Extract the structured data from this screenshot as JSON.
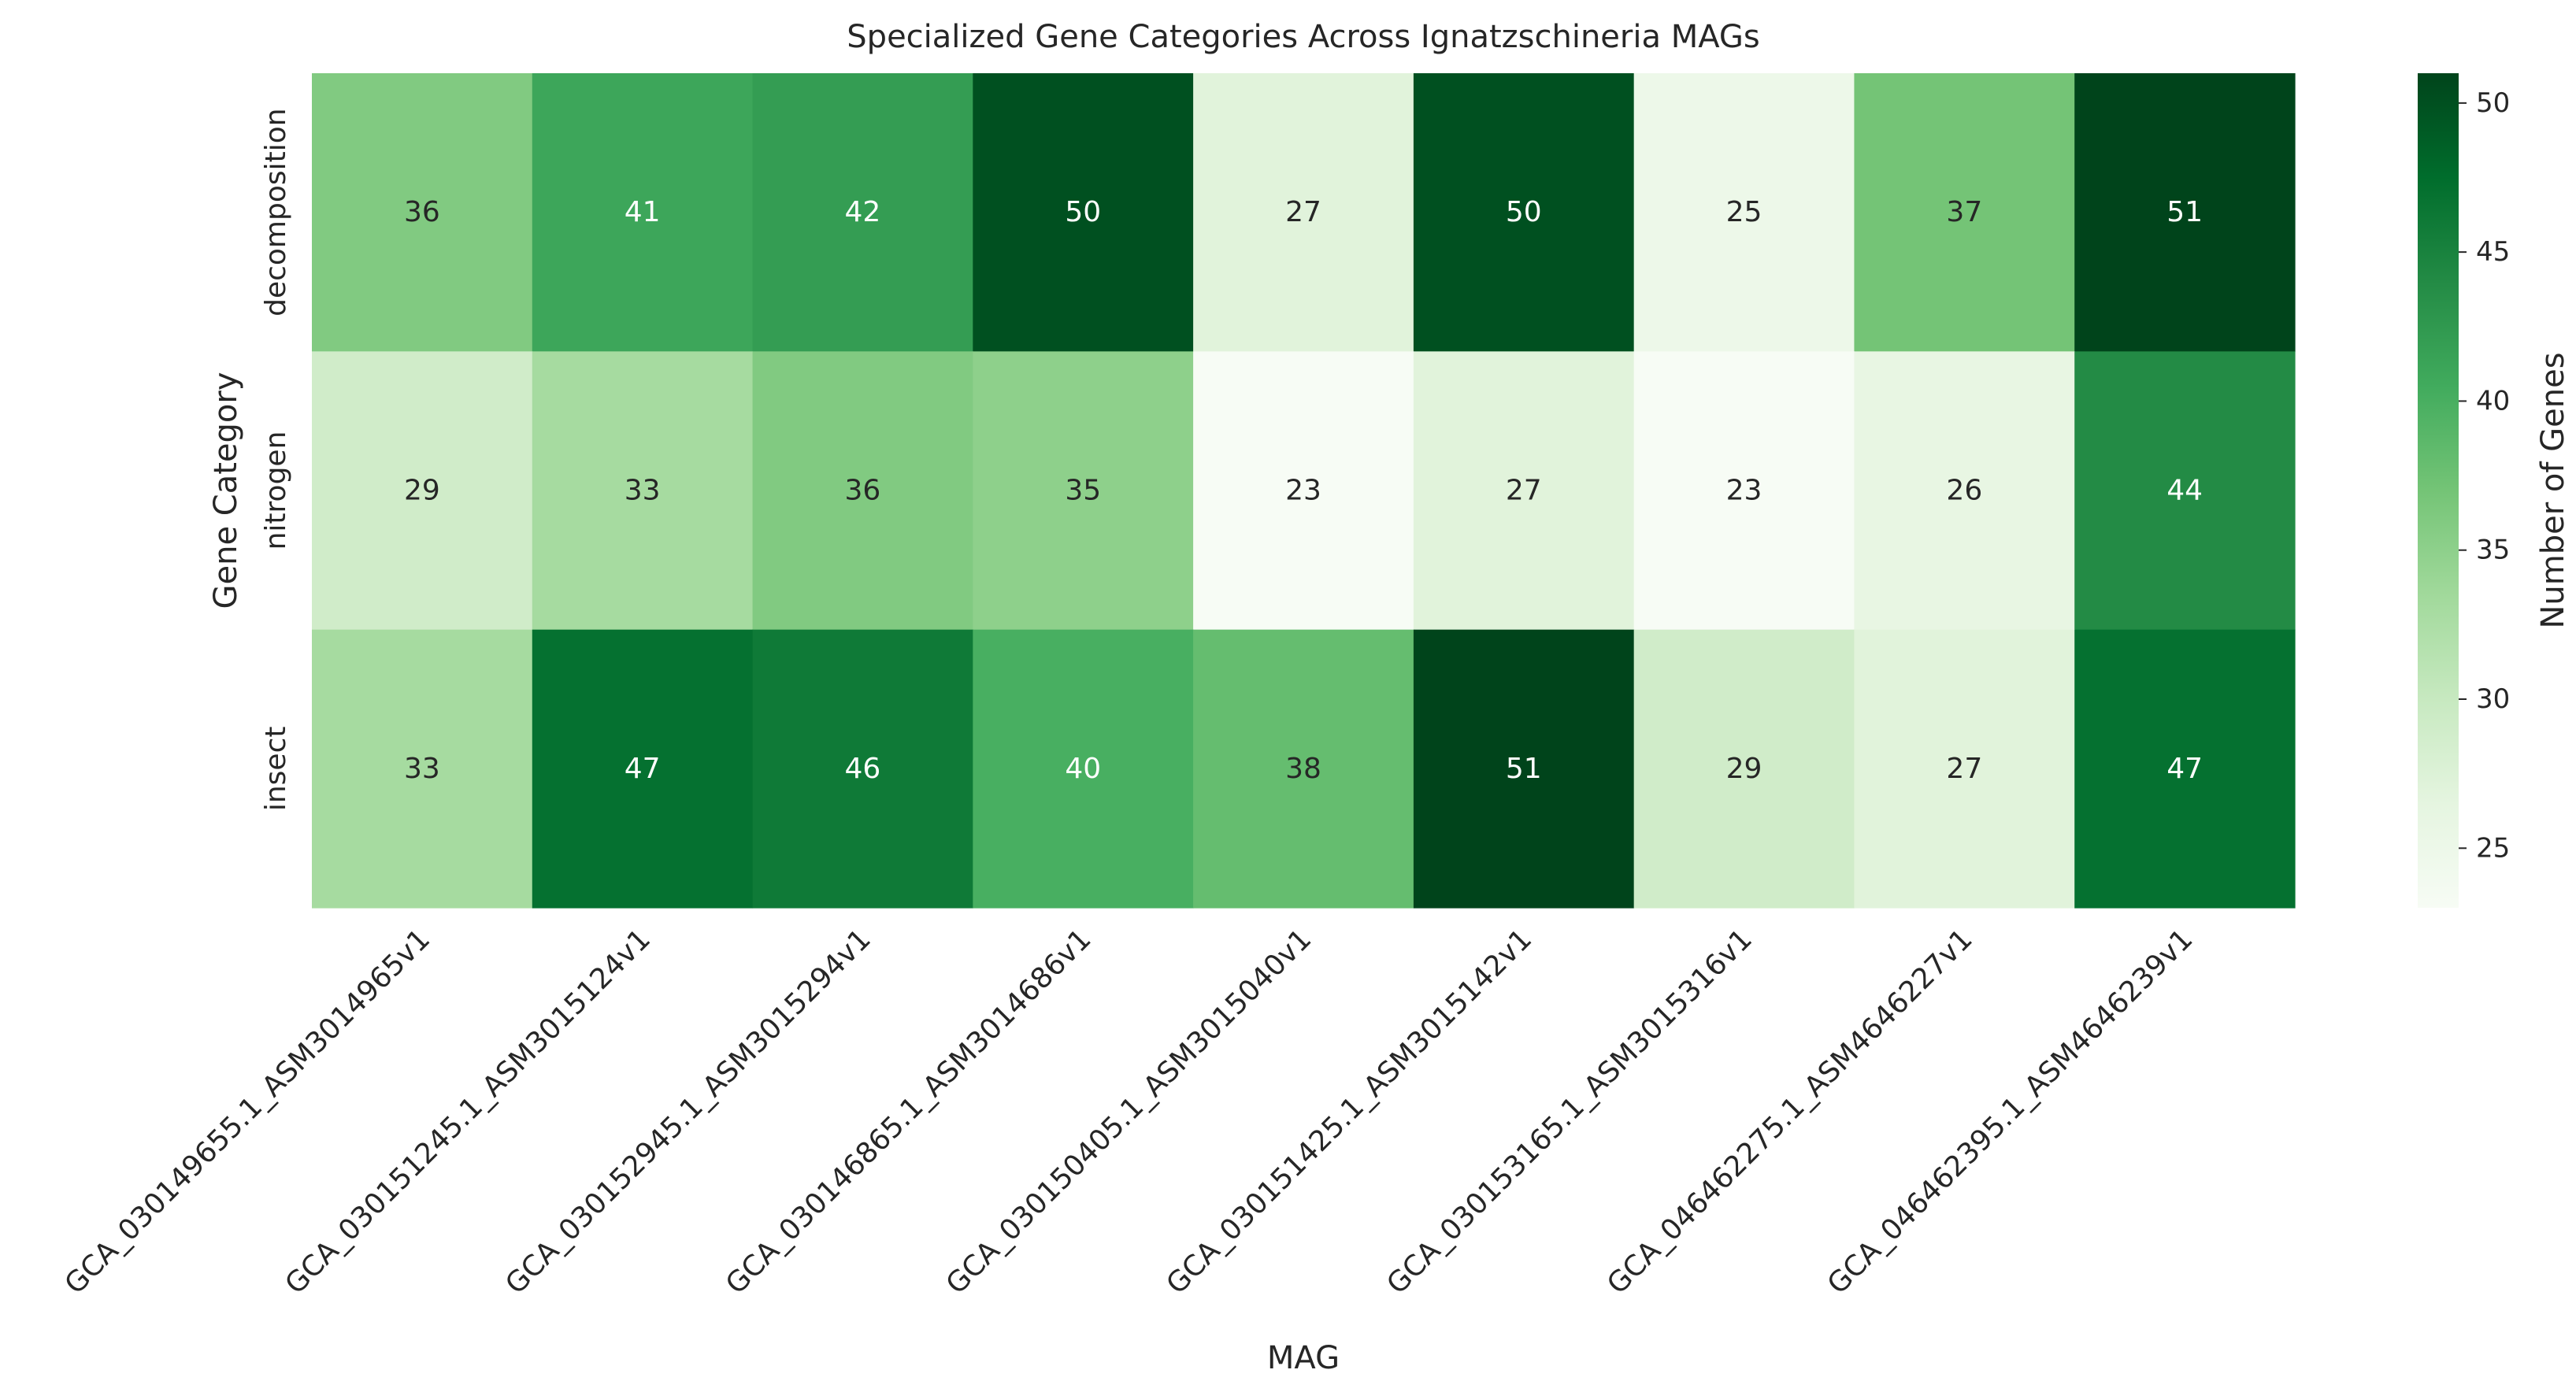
{
  "chart_data": {
    "type": "heatmap",
    "title": "Specialized Gene Categories Across Ignatzschineria MAGs",
    "xlabel": "MAG",
    "ylabel": "Gene Category",
    "colorbar_label": "Number of Genes",
    "colormap": "Greens",
    "vmin": 23,
    "vmax": 51,
    "colorbar_ticks": [
      25,
      30,
      35,
      40,
      45,
      50
    ],
    "columns": [
      "GCA_030149655.1_ASM3014965v1",
      "GCA_030151245.1_ASM3015124v1",
      "GCA_030152945.1_ASM3015294v1",
      "GCA_030146865.1_ASM3014686v1",
      "GCA_030150405.1_ASM3015040v1",
      "GCA_030151425.1_ASM3015142v1",
      "GCA_030153165.1_ASM3015316v1",
      "GCA_046462275.1_ASM4646227v1",
      "GCA_046462395.1_ASM4646239v1"
    ],
    "rows": [
      "decomposition",
      "nitrogen",
      "insect"
    ],
    "values": [
      [
        36,
        41,
        42,
        50,
        27,
        50,
        25,
        37,
        51
      ],
      [
        29,
        33,
        36,
        35,
        23,
        27,
        23,
        26,
        44
      ],
      [
        33,
        47,
        46,
        40,
        38,
        51,
        29,
        27,
        47
      ]
    ]
  }
}
